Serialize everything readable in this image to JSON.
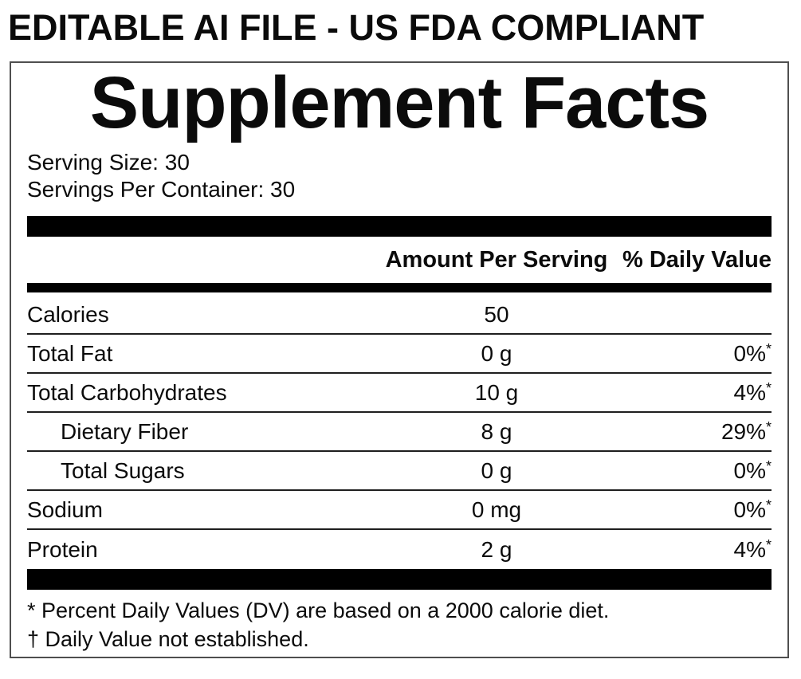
{
  "banner": {
    "text": "EDITABLE AI FILE - US FDA COMPLIANT"
  },
  "panel": {
    "title": "Supplement Facts",
    "serving_size": "Serving Size: 30",
    "servings_per_container": "Servings Per Container: 30",
    "header": {
      "amount_label": "Amount Per Serving",
      "dv_label": "% Daily Value"
    },
    "rows": [
      {
        "name": "Calories",
        "amount": "50",
        "dv": "",
        "dv_sup": ""
      },
      {
        "name": "Total Fat",
        "amount": "0 g",
        "dv": "0%",
        "dv_sup": "*"
      },
      {
        "name": "Total Carbohydrates",
        "amount": "10 g",
        "dv": "4%",
        "dv_sup": "*"
      },
      {
        "name": "Dietary Fiber",
        "amount": "8 g",
        "dv": "29%",
        "dv_sup": "*"
      },
      {
        "name": "Total Sugars",
        "amount": "0 g",
        "dv": "0%",
        "dv_sup": "*"
      },
      {
        "name": "Sodium",
        "amount": "0 mg",
        "dv": "0%",
        "dv_sup": "*"
      },
      {
        "name": "Protein",
        "amount": "2 g",
        "dv": "4%",
        "dv_sup": "*"
      }
    ],
    "footnotes": [
      "* Percent Daily Values (DV) are based on a 2000 calorie diet.",
      "† Daily Value not established."
    ]
  },
  "colors": {
    "ink": "#0b0b0b",
    "separator": "#1f1f1f",
    "panel_border": "#4f4f4f",
    "bar": "#000000"
  }
}
